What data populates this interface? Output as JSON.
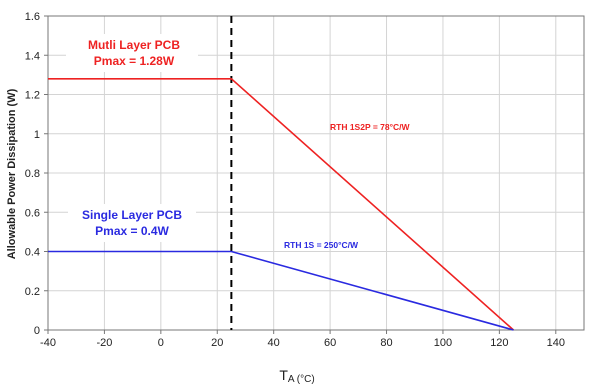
{
  "chart_data": {
    "type": "line",
    "xlabel_main": "T",
    "xlabel_sub": "A (°C)",
    "ylabel": "Allowable Power Dissipation (W)",
    "xlim": [
      -40,
      150
    ],
    "ylim": [
      0,
      1.6
    ],
    "xticks": [
      -40,
      -20,
      0,
      20,
      40,
      60,
      80,
      100,
      120,
      140
    ],
    "yticks": [
      0,
      0.2,
      0.4,
      0.6,
      0.8,
      1,
      1.2,
      1.4,
      1.6
    ],
    "grid": true,
    "vline": {
      "x": 25,
      "style": "dashed",
      "color": "#000000"
    },
    "series": [
      {
        "color": "#ee2222",
        "x": [
          -40,
          25,
          125
        ],
        "y": [
          1.28,
          1.28,
          0
        ],
        "label_line1": "Mutli Layer PCB",
        "label_line2": "Pmax = 1.28W",
        "slope_label": "RTH 1S2P = 78°C/W"
      },
      {
        "color": "#2a2ae0",
        "x": [
          -40,
          25,
          125
        ],
        "y": [
          0.4,
          0.4,
          0
        ],
        "label_line1": "Single Layer PCB",
        "label_line2": "Pmax = 0.4W",
        "slope_label": "RTH 1S = 250°C/W"
      }
    ]
  }
}
